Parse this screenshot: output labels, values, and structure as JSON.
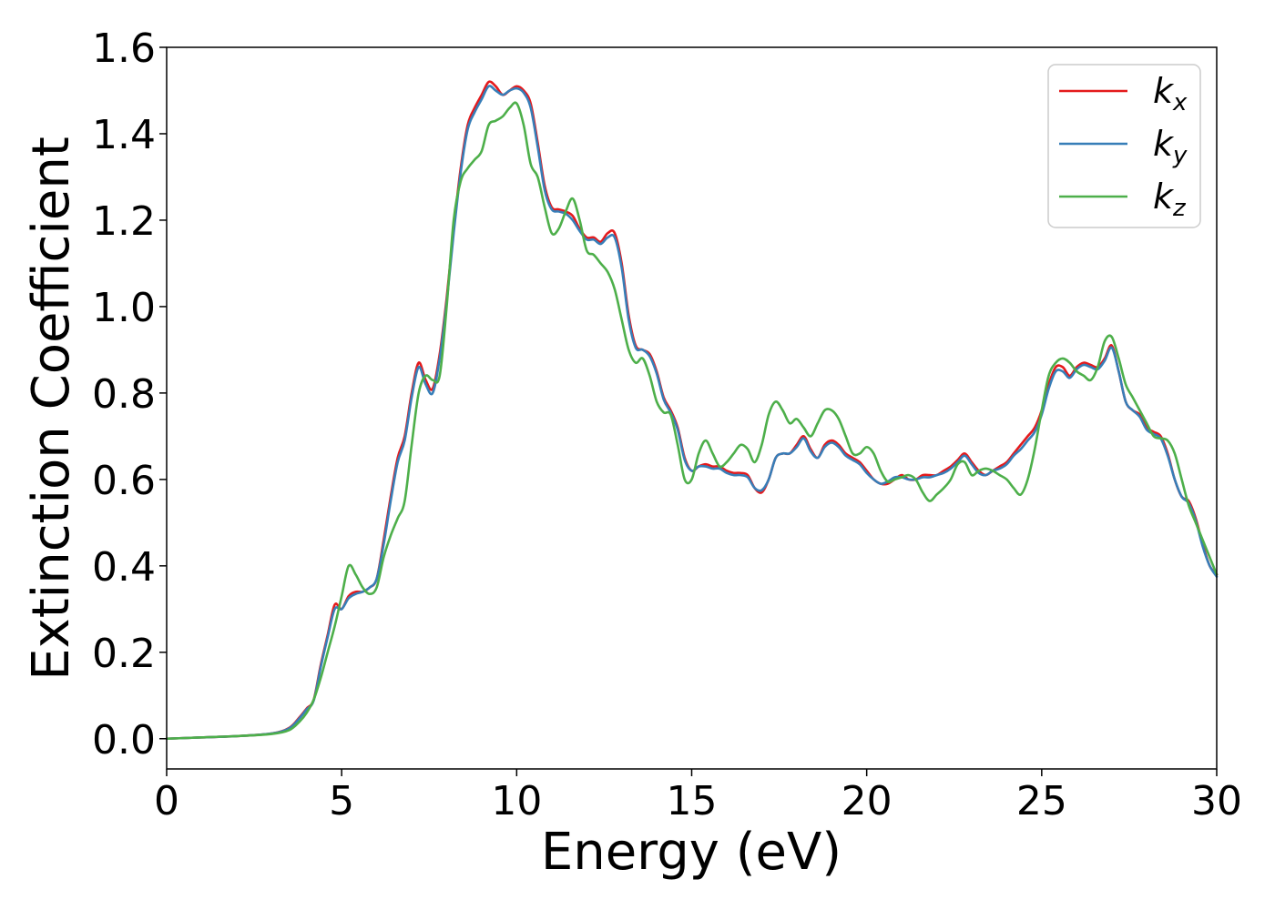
{
  "chart_data": {
    "type": "line",
    "xlabel": "Energy (eV)",
    "ylabel": "Extinction Coefficient",
    "xlim": [
      0,
      30
    ],
    "ylim": [
      -0.07,
      1.6
    ],
    "xticks": [
      0,
      5,
      10,
      15,
      20,
      25,
      30
    ],
    "xtick_labels": [
      "0",
      "5",
      "10",
      "15",
      "20",
      "25",
      "30"
    ],
    "yticks": [
      0.0,
      0.2,
      0.4,
      0.6,
      0.8,
      1.0,
      1.2,
      1.4,
      1.6
    ],
    "ytick_labels": [
      "0.0",
      "0.2",
      "0.4",
      "0.6",
      "0.8",
      "1.0",
      "1.2",
      "1.4",
      "1.6"
    ],
    "grid": false,
    "legend_position": "top-right",
    "series": [
      {
        "name": "k_x",
        "legend_base": "k",
        "legend_sub": "x",
        "color": "#e41a1c",
        "x": [
          0,
          1,
          2,
          3,
          3.5,
          3.8,
          4.0,
          4.2,
          4.4,
          4.6,
          4.8,
          5.0,
          5.2,
          5.4,
          5.6,
          5.8,
          6.0,
          6.2,
          6.4,
          6.6,
          6.8,
          7.0,
          7.2,
          7.4,
          7.6,
          7.8,
          8.0,
          8.2,
          8.4,
          8.6,
          8.8,
          9.0,
          9.2,
          9.4,
          9.6,
          9.8,
          10.0,
          10.2,
          10.4,
          10.6,
          10.8,
          11.0,
          11.2,
          11.4,
          11.6,
          11.8,
          12.0,
          12.2,
          12.4,
          12.6,
          12.8,
          13.0,
          13.2,
          13.4,
          13.6,
          13.8,
          14.0,
          14.2,
          14.4,
          14.6,
          14.8,
          15.0,
          15.2,
          15.4,
          15.6,
          15.8,
          16.0,
          16.2,
          16.4,
          16.6,
          16.8,
          17.0,
          17.2,
          17.4,
          17.6,
          17.8,
          18.0,
          18.2,
          18.4,
          18.6,
          18.8,
          19.0,
          19.2,
          19.4,
          19.6,
          19.8,
          20.0,
          20.2,
          20.4,
          20.6,
          20.8,
          21.0,
          21.2,
          21.4,
          21.6,
          21.8,
          22.0,
          22.2,
          22.4,
          22.6,
          22.8,
          23.0,
          23.2,
          23.4,
          23.6,
          23.8,
          24.0,
          24.2,
          24.4,
          24.6,
          24.8,
          25.0,
          25.2,
          25.4,
          25.6,
          25.8,
          26.0,
          26.2,
          26.4,
          26.6,
          26.8,
          27.0,
          27.2,
          27.4,
          27.6,
          27.8,
          28.0,
          28.2,
          28.4,
          28.6,
          28.8,
          29.0,
          29.2,
          29.4,
          29.6,
          29.8,
          30.0
        ],
        "y": [
          0.0,
          0.003,
          0.006,
          0.012,
          0.025,
          0.05,
          0.07,
          0.09,
          0.17,
          0.24,
          0.31,
          0.3,
          0.33,
          0.34,
          0.34,
          0.35,
          0.37,
          0.46,
          0.56,
          0.65,
          0.7,
          0.8,
          0.87,
          0.83,
          0.81,
          0.89,
          1.02,
          1.18,
          1.32,
          1.42,
          1.46,
          1.49,
          1.52,
          1.51,
          1.49,
          1.5,
          1.51,
          1.5,
          1.47,
          1.38,
          1.28,
          1.23,
          1.225,
          1.22,
          1.21,
          1.18,
          1.16,
          1.16,
          1.15,
          1.17,
          1.17,
          1.1,
          0.98,
          0.91,
          0.9,
          0.89,
          0.85,
          0.79,
          0.76,
          0.72,
          0.65,
          0.62,
          0.63,
          0.635,
          0.63,
          0.63,
          0.62,
          0.615,
          0.615,
          0.61,
          0.58,
          0.57,
          0.6,
          0.65,
          0.66,
          0.66,
          0.68,
          0.7,
          0.67,
          0.65,
          0.68,
          0.69,
          0.68,
          0.66,
          0.65,
          0.64,
          0.62,
          0.6,
          0.59,
          0.59,
          0.6,
          0.61,
          0.6,
          0.6,
          0.61,
          0.61,
          0.61,
          0.62,
          0.63,
          0.645,
          0.66,
          0.64,
          0.62,
          0.61,
          0.62,
          0.63,
          0.64,
          0.66,
          0.68,
          0.7,
          0.72,
          0.76,
          0.82,
          0.86,
          0.86,
          0.84,
          0.86,
          0.87,
          0.865,
          0.86,
          0.88,
          0.91,
          0.85,
          0.78,
          0.76,
          0.75,
          0.72,
          0.71,
          0.7,
          0.66,
          0.6,
          0.56,
          0.55,
          0.51,
          0.45,
          0.4,
          0.38
        ]
      },
      {
        "name": "k_y",
        "legend_base": "k",
        "legend_sub": "y",
        "color": "#377eb8",
        "x": [
          0,
          1,
          2,
          3,
          3.5,
          3.8,
          4.0,
          4.2,
          4.4,
          4.6,
          4.8,
          5.0,
          5.2,
          5.4,
          5.6,
          5.8,
          6.0,
          6.2,
          6.4,
          6.6,
          6.8,
          7.0,
          7.2,
          7.4,
          7.6,
          7.8,
          8.0,
          8.2,
          8.4,
          8.6,
          8.8,
          9.0,
          9.2,
          9.4,
          9.6,
          9.8,
          10.0,
          10.2,
          10.4,
          10.6,
          10.8,
          11.0,
          11.2,
          11.4,
          11.6,
          11.8,
          12.0,
          12.2,
          12.4,
          12.6,
          12.8,
          13.0,
          13.2,
          13.4,
          13.6,
          13.8,
          14.0,
          14.2,
          14.4,
          14.6,
          14.8,
          15.0,
          15.2,
          15.4,
          15.6,
          15.8,
          16.0,
          16.2,
          16.4,
          16.6,
          16.8,
          17.0,
          17.2,
          17.4,
          17.6,
          17.8,
          18.0,
          18.2,
          18.4,
          18.6,
          18.8,
          19.0,
          19.2,
          19.4,
          19.6,
          19.8,
          20.0,
          20.2,
          20.4,
          20.6,
          20.8,
          21.0,
          21.2,
          21.4,
          21.6,
          21.8,
          22.0,
          22.2,
          22.4,
          22.6,
          22.8,
          23.0,
          23.2,
          23.4,
          23.6,
          23.8,
          24.0,
          24.2,
          24.4,
          24.6,
          24.8,
          25.0,
          25.2,
          25.4,
          25.6,
          25.8,
          26.0,
          26.2,
          26.4,
          26.6,
          26.8,
          27.0,
          27.2,
          27.4,
          27.6,
          27.8,
          28.0,
          28.2,
          28.4,
          28.6,
          28.8,
          29.0,
          29.2,
          29.4,
          29.6,
          29.8,
          30.0
        ],
        "y": [
          0.0,
          0.003,
          0.006,
          0.012,
          0.024,
          0.048,
          0.068,
          0.088,
          0.165,
          0.235,
          0.3,
          0.3,
          0.325,
          0.335,
          0.34,
          0.35,
          0.37,
          0.45,
          0.55,
          0.64,
          0.69,
          0.79,
          0.86,
          0.82,
          0.8,
          0.88,
          1.01,
          1.17,
          1.31,
          1.41,
          1.45,
          1.48,
          1.51,
          1.5,
          1.49,
          1.5,
          1.505,
          1.495,
          1.46,
          1.37,
          1.27,
          1.225,
          1.22,
          1.215,
          1.2,
          1.175,
          1.155,
          1.155,
          1.145,
          1.16,
          1.16,
          1.09,
          0.97,
          0.905,
          0.9,
          0.885,
          0.845,
          0.785,
          0.755,
          0.715,
          0.645,
          0.62,
          0.63,
          0.63,
          0.625,
          0.625,
          0.615,
          0.61,
          0.61,
          0.605,
          0.58,
          0.575,
          0.6,
          0.65,
          0.66,
          0.66,
          0.675,
          0.695,
          0.665,
          0.65,
          0.675,
          0.685,
          0.675,
          0.655,
          0.645,
          0.635,
          0.615,
          0.6,
          0.59,
          0.595,
          0.605,
          0.605,
          0.6,
          0.6,
          0.605,
          0.605,
          0.61,
          0.615,
          0.625,
          0.64,
          0.655,
          0.635,
          0.615,
          0.61,
          0.62,
          0.625,
          0.635,
          0.655,
          0.67,
          0.69,
          0.71,
          0.75,
          0.81,
          0.85,
          0.85,
          0.835,
          0.855,
          0.865,
          0.86,
          0.855,
          0.875,
          0.905,
          0.85,
          0.78,
          0.76,
          0.745,
          0.715,
          0.705,
          0.695,
          0.655,
          0.6,
          0.56,
          0.545,
          0.505,
          0.445,
          0.4,
          0.375
        ]
      },
      {
        "name": "k_z",
        "legend_base": "k",
        "legend_sub": "z",
        "color": "#4daf4a",
        "x": [
          0,
          1,
          2,
          3,
          3.5,
          3.8,
          4.0,
          4.2,
          4.4,
          4.6,
          4.8,
          5.0,
          5.2,
          5.4,
          5.6,
          5.8,
          6.0,
          6.2,
          6.4,
          6.6,
          6.8,
          7.0,
          7.2,
          7.4,
          7.6,
          7.8,
          8.0,
          8.2,
          8.4,
          8.6,
          8.8,
          9.0,
          9.2,
          9.4,
          9.6,
          9.8,
          10.0,
          10.2,
          10.4,
          10.6,
          10.8,
          11.0,
          11.2,
          11.4,
          11.6,
          11.8,
          12.0,
          12.2,
          12.4,
          12.6,
          12.8,
          13.0,
          13.2,
          13.4,
          13.6,
          13.8,
          14.0,
          14.2,
          14.4,
          14.6,
          14.8,
          15.0,
          15.2,
          15.4,
          15.6,
          15.8,
          16.0,
          16.2,
          16.4,
          16.6,
          16.8,
          17.0,
          17.2,
          17.4,
          17.6,
          17.8,
          18.0,
          18.2,
          18.4,
          18.6,
          18.8,
          19.0,
          19.2,
          19.4,
          19.6,
          19.8,
          20.0,
          20.2,
          20.4,
          20.6,
          20.8,
          21.0,
          21.2,
          21.4,
          21.6,
          21.8,
          22.0,
          22.2,
          22.4,
          22.6,
          22.8,
          23.0,
          23.2,
          23.4,
          23.6,
          23.8,
          24.0,
          24.2,
          24.4,
          24.6,
          24.8,
          25.0,
          25.2,
          25.4,
          25.6,
          25.8,
          26.0,
          26.2,
          26.4,
          26.6,
          26.8,
          27.0,
          27.2,
          27.4,
          27.6,
          27.8,
          28.0,
          28.2,
          28.4,
          28.6,
          28.8,
          29.0,
          29.2,
          29.4,
          29.6,
          29.8,
          30.0
        ],
        "y": [
          0.0,
          0.003,
          0.006,
          0.011,
          0.02,
          0.04,
          0.06,
          0.09,
          0.14,
          0.2,
          0.26,
          0.33,
          0.4,
          0.38,
          0.35,
          0.335,
          0.35,
          0.42,
          0.47,
          0.51,
          0.55,
          0.68,
          0.8,
          0.84,
          0.83,
          0.84,
          1.0,
          1.2,
          1.29,
          1.32,
          1.34,
          1.36,
          1.42,
          1.43,
          1.44,
          1.46,
          1.47,
          1.42,
          1.33,
          1.3,
          1.23,
          1.17,
          1.18,
          1.22,
          1.25,
          1.2,
          1.13,
          1.12,
          1.1,
          1.08,
          1.04,
          0.97,
          0.9,
          0.87,
          0.88,
          0.84,
          0.78,
          0.755,
          0.75,
          0.68,
          0.6,
          0.6,
          0.66,
          0.69,
          0.66,
          0.63,
          0.64,
          0.66,
          0.68,
          0.67,
          0.64,
          0.68,
          0.75,
          0.78,
          0.76,
          0.73,
          0.74,
          0.72,
          0.7,
          0.73,
          0.76,
          0.76,
          0.74,
          0.7,
          0.66,
          0.66,
          0.675,
          0.66,
          0.62,
          0.595,
          0.6,
          0.605,
          0.61,
          0.6,
          0.57,
          0.55,
          0.565,
          0.58,
          0.6,
          0.635,
          0.64,
          0.61,
          0.62,
          0.625,
          0.62,
          0.61,
          0.6,
          0.58,
          0.565,
          0.6,
          0.67,
          0.76,
          0.84,
          0.87,
          0.88,
          0.87,
          0.85,
          0.84,
          0.83,
          0.86,
          0.92,
          0.93,
          0.88,
          0.82,
          0.79,
          0.76,
          0.73,
          0.7,
          0.695,
          0.69,
          0.66,
          0.6,
          0.54,
          0.5,
          0.46,
          0.42,
          0.38
        ]
      }
    ]
  }
}
